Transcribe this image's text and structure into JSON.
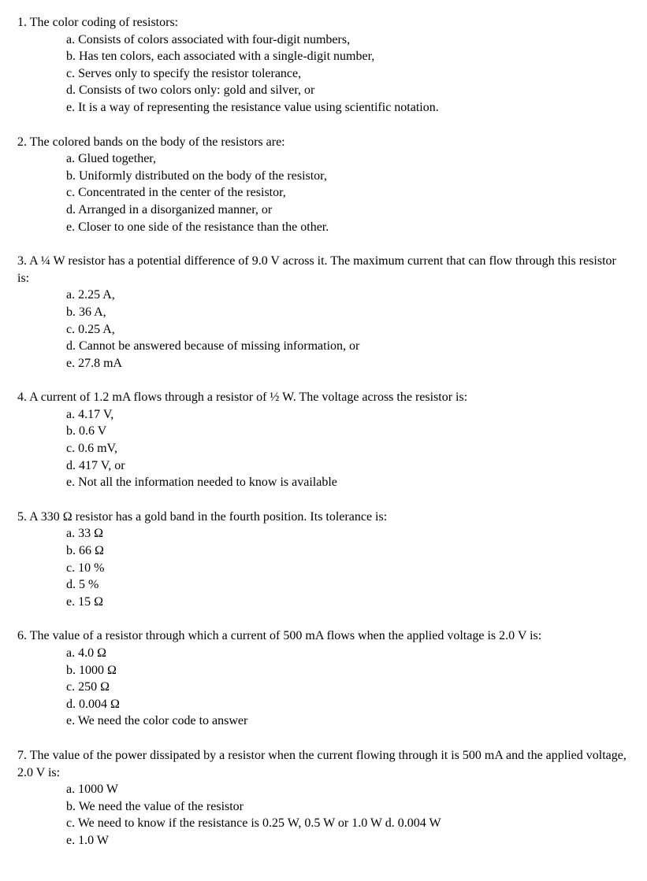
{
  "font": {
    "family": "Times New Roman",
    "size_pt": 12,
    "color": "#000000"
  },
  "background_color": "#ffffff",
  "questions": [
    {
      "number": "1.",
      "text": "The color coding of resistors:",
      "options": [
        "a. Consists of colors associated with four-digit numbers,",
        "b. Has ten colors, each associated with a single-digit number,",
        " c. Serves only to specify the resistor tolerance,",
        "d. Consists of two colors only: gold and silver, or",
        "e. It is a way of representing the resistance value using scientific notation."
      ]
    },
    {
      "number": "2.",
      "text": "The colored bands on the body of the resistors are:",
      "options": [
        "a. Glued together,",
        "b. Uniformly distributed on the body of the resistor,",
        "c. Concentrated in the center of the resistor,",
        "d. Arranged in a disorganized manner, or",
        "e. Closer to one side of the resistance than the other."
      ]
    },
    {
      "number": "3.",
      "text": "A ¼ W resistor has a potential difference of 9.0 V across it.  The maximum current that can flow through this resistor is:",
      "options": [
        "a. 2.25 A,",
        "b. 36 A,",
        "c. 0.25 A,",
        "d. Cannot be answered because of missing information, or",
        "e. 27.8 mA"
      ]
    },
    {
      "number": "4.",
      "text": "A current of 1.2 mA flows through a resistor of ½ W. The voltage across the resistor is:",
      "options": [
        "a. 4.17 V,",
        "b. 0.6 V",
        "c. 0.6 mV,",
        "d. 417 V, or",
        "e. Not all the information needed to know is available"
      ]
    },
    {
      "number": "5.",
      "text": "A 330 Ω resistor has a gold band in the fourth position. Its tolerance is:",
      "options": [
        "a. 33 Ω",
        "b. 66 Ω",
        "c. 10 %",
        "d. 5 %",
        "e. 15 Ω"
      ]
    },
    {
      "number": "6.",
      "text": "The value of a resistor through which a current of 500 mA flows when the applied voltage is 2.0 V is:",
      "options": [
        "a. 4.0 Ω",
        "b. 1000 Ω",
        "c. 250 Ω",
        "d. 0.004 Ω",
        "e. We need the color code to answer"
      ]
    },
    {
      "number": "7.",
      "text": "The value of the power dissipated by a resistor when the current flowing through it is 500 mA and the applied voltage, 2.0 V is:",
      "options": [
        "a. 1000 W",
        "b. We need the value of the resistor",
        "c. We need to know if the resistance is 0.25 W, 0.5 W or 1.0 W d. 0.004 W",
        "e. 1.0 W"
      ]
    }
  ]
}
